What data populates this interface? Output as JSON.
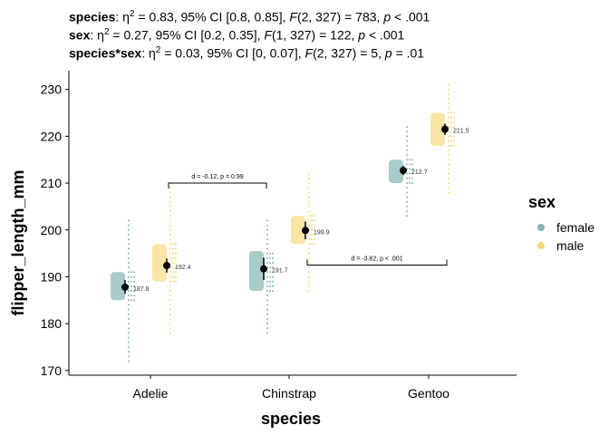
{
  "chart_data": {
    "type": "scatter",
    "subtitle_lines": [
      {
        "term": "species",
        "eta": "0.83",
        "ci_label": "95% CI",
        "ci": "[0.8, 0.85]",
        "F_df": "(2, 327)",
        "F_val": "783",
        "p": "< .001"
      },
      {
        "term": "sex",
        "eta": "0.27",
        "ci_label": "95% CI",
        "ci": "[0.2, 0.35]",
        "F_df": "(1, 327)",
        "F_val": "122",
        "p": "< .001"
      },
      {
        "term": "species*sex",
        "eta": "0.03",
        "ci_label": "95% CI",
        "ci": "[0, 0.07]",
        "F_df": "(2, 327)",
        "F_val": "5",
        "p": "= .01"
      }
    ],
    "xlabel": "species",
    "ylabel": "flipper_length_mm",
    "categories": [
      "Adelie",
      "Chinstrap",
      "Gentoo"
    ],
    "ylim": [
      169,
      234
    ],
    "yticks": [
      170,
      180,
      190,
      200,
      210,
      220,
      230
    ],
    "legend": {
      "title": "sex",
      "placement": "right",
      "entries": [
        "female",
        "male"
      ]
    },
    "colors": {
      "female": "#87b4b4",
      "male": "#f9d778",
      "box_female": "#9fc5c5",
      "box_male": "#fbe29a"
    },
    "series": [
      {
        "name": "female",
        "means": [
          187.8,
          191.7,
          212.7
        ],
        "mean_labels": [
          "187.8",
          "191.7",
          "212.7"
        ],
        "box": [
          [
            185,
            191
          ],
          [
            187,
            195.5
          ],
          [
            210,
            215
          ]
        ],
        "ci": [
          [
            186.4,
            189.3
          ],
          [
            189.3,
            194.1
          ],
          [
            211.7,
            213.7
          ]
        ],
        "range": [
          [
            172,
            202
          ],
          [
            178,
            202
          ],
          [
            203,
            222
          ]
        ]
      },
      {
        "name": "male",
        "means": [
          192.4,
          199.9,
          221.5
        ],
        "mean_labels": [
          "192.4",
          "199.9",
          "221.5"
        ],
        "box": [
          [
            189,
            197
          ],
          [
            197,
            203
          ],
          [
            218,
            225
          ]
        ],
        "ci": [
          [
            190.9,
            193.9
          ],
          [
            198.0,
            201.8
          ],
          [
            220.3,
            222.7
          ]
        ],
        "range": [
          [
            178,
            210
          ],
          [
            187,
            212
          ],
          [
            208,
            231
          ]
        ]
      }
    ],
    "annotations": [
      {
        "label": "d = -0.12, p = 0.99",
        "between": [
          "Adelie",
          "Chinstrap"
        ],
        "sex": "female",
        "y": 210
      },
      {
        "label": "d = -3.82, p < .001",
        "between": [
          "Chinstrap",
          "Gentoo"
        ],
        "sex": "male",
        "y": 192.5
      }
    ]
  }
}
